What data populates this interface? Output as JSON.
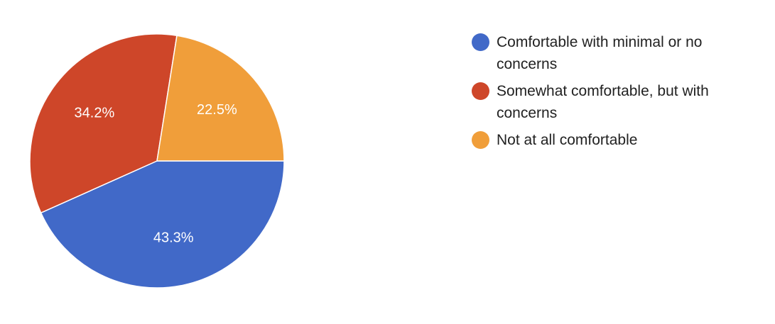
{
  "chart_data": {
    "type": "pie",
    "categories": [
      "Comfortable with minimal or no concerns",
      "Somewhat comfortable, but with concerns",
      "Not at all comfortable"
    ],
    "values": [
      43.3,
      34.2,
      22.5
    ],
    "labels": [
      "43.3%",
      "34.2%",
      "22.5%"
    ],
    "colors": [
      "#4169c8",
      "#ce4629",
      "#f09e3a"
    ],
    "legend_position": "right"
  }
}
